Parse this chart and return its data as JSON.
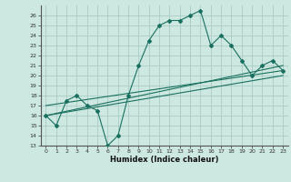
{
  "title": "",
  "xlabel": "Humidex (Indice chaleur)",
  "ylabel": "",
  "xlim": [
    -0.5,
    23.5
  ],
  "ylim": [
    13,
    27
  ],
  "yticks": [
    13,
    14,
    15,
    16,
    17,
    18,
    19,
    20,
    21,
    22,
    23,
    24,
    25,
    26
  ],
  "xticks": [
    0,
    1,
    2,
    3,
    4,
    5,
    6,
    7,
    8,
    9,
    10,
    11,
    12,
    13,
    14,
    15,
    16,
    17,
    18,
    19,
    20,
    21,
    22,
    23
  ],
  "background_color": "#cce8e0",
  "grid_color": "#aaccC4",
  "line_color": "#1a7060",
  "line1_x": [
    0,
    1,
    2,
    3,
    4,
    5,
    6,
    7,
    8,
    9,
    10,
    11,
    12,
    13,
    14,
    15,
    16,
    17,
    18,
    19,
    20,
    21,
    22,
    23
  ],
  "line1_y": [
    16,
    15,
    17.5,
    18,
    17,
    16.5,
    13,
    14,
    18,
    21,
    23.5,
    25,
    25.5,
    25.5,
    26,
    26.5,
    23,
    24,
    23,
    21.5,
    20,
    21,
    21.5,
    20.5
  ],
  "line2_x": [
    0,
    23
  ],
  "line2_y": [
    16,
    21
  ],
  "line3_x": [
    0,
    23
  ],
  "line3_y": [
    16,
    20
  ],
  "line4_x": [
    0,
    23
  ],
  "line4_y": [
    17,
    20.5
  ]
}
